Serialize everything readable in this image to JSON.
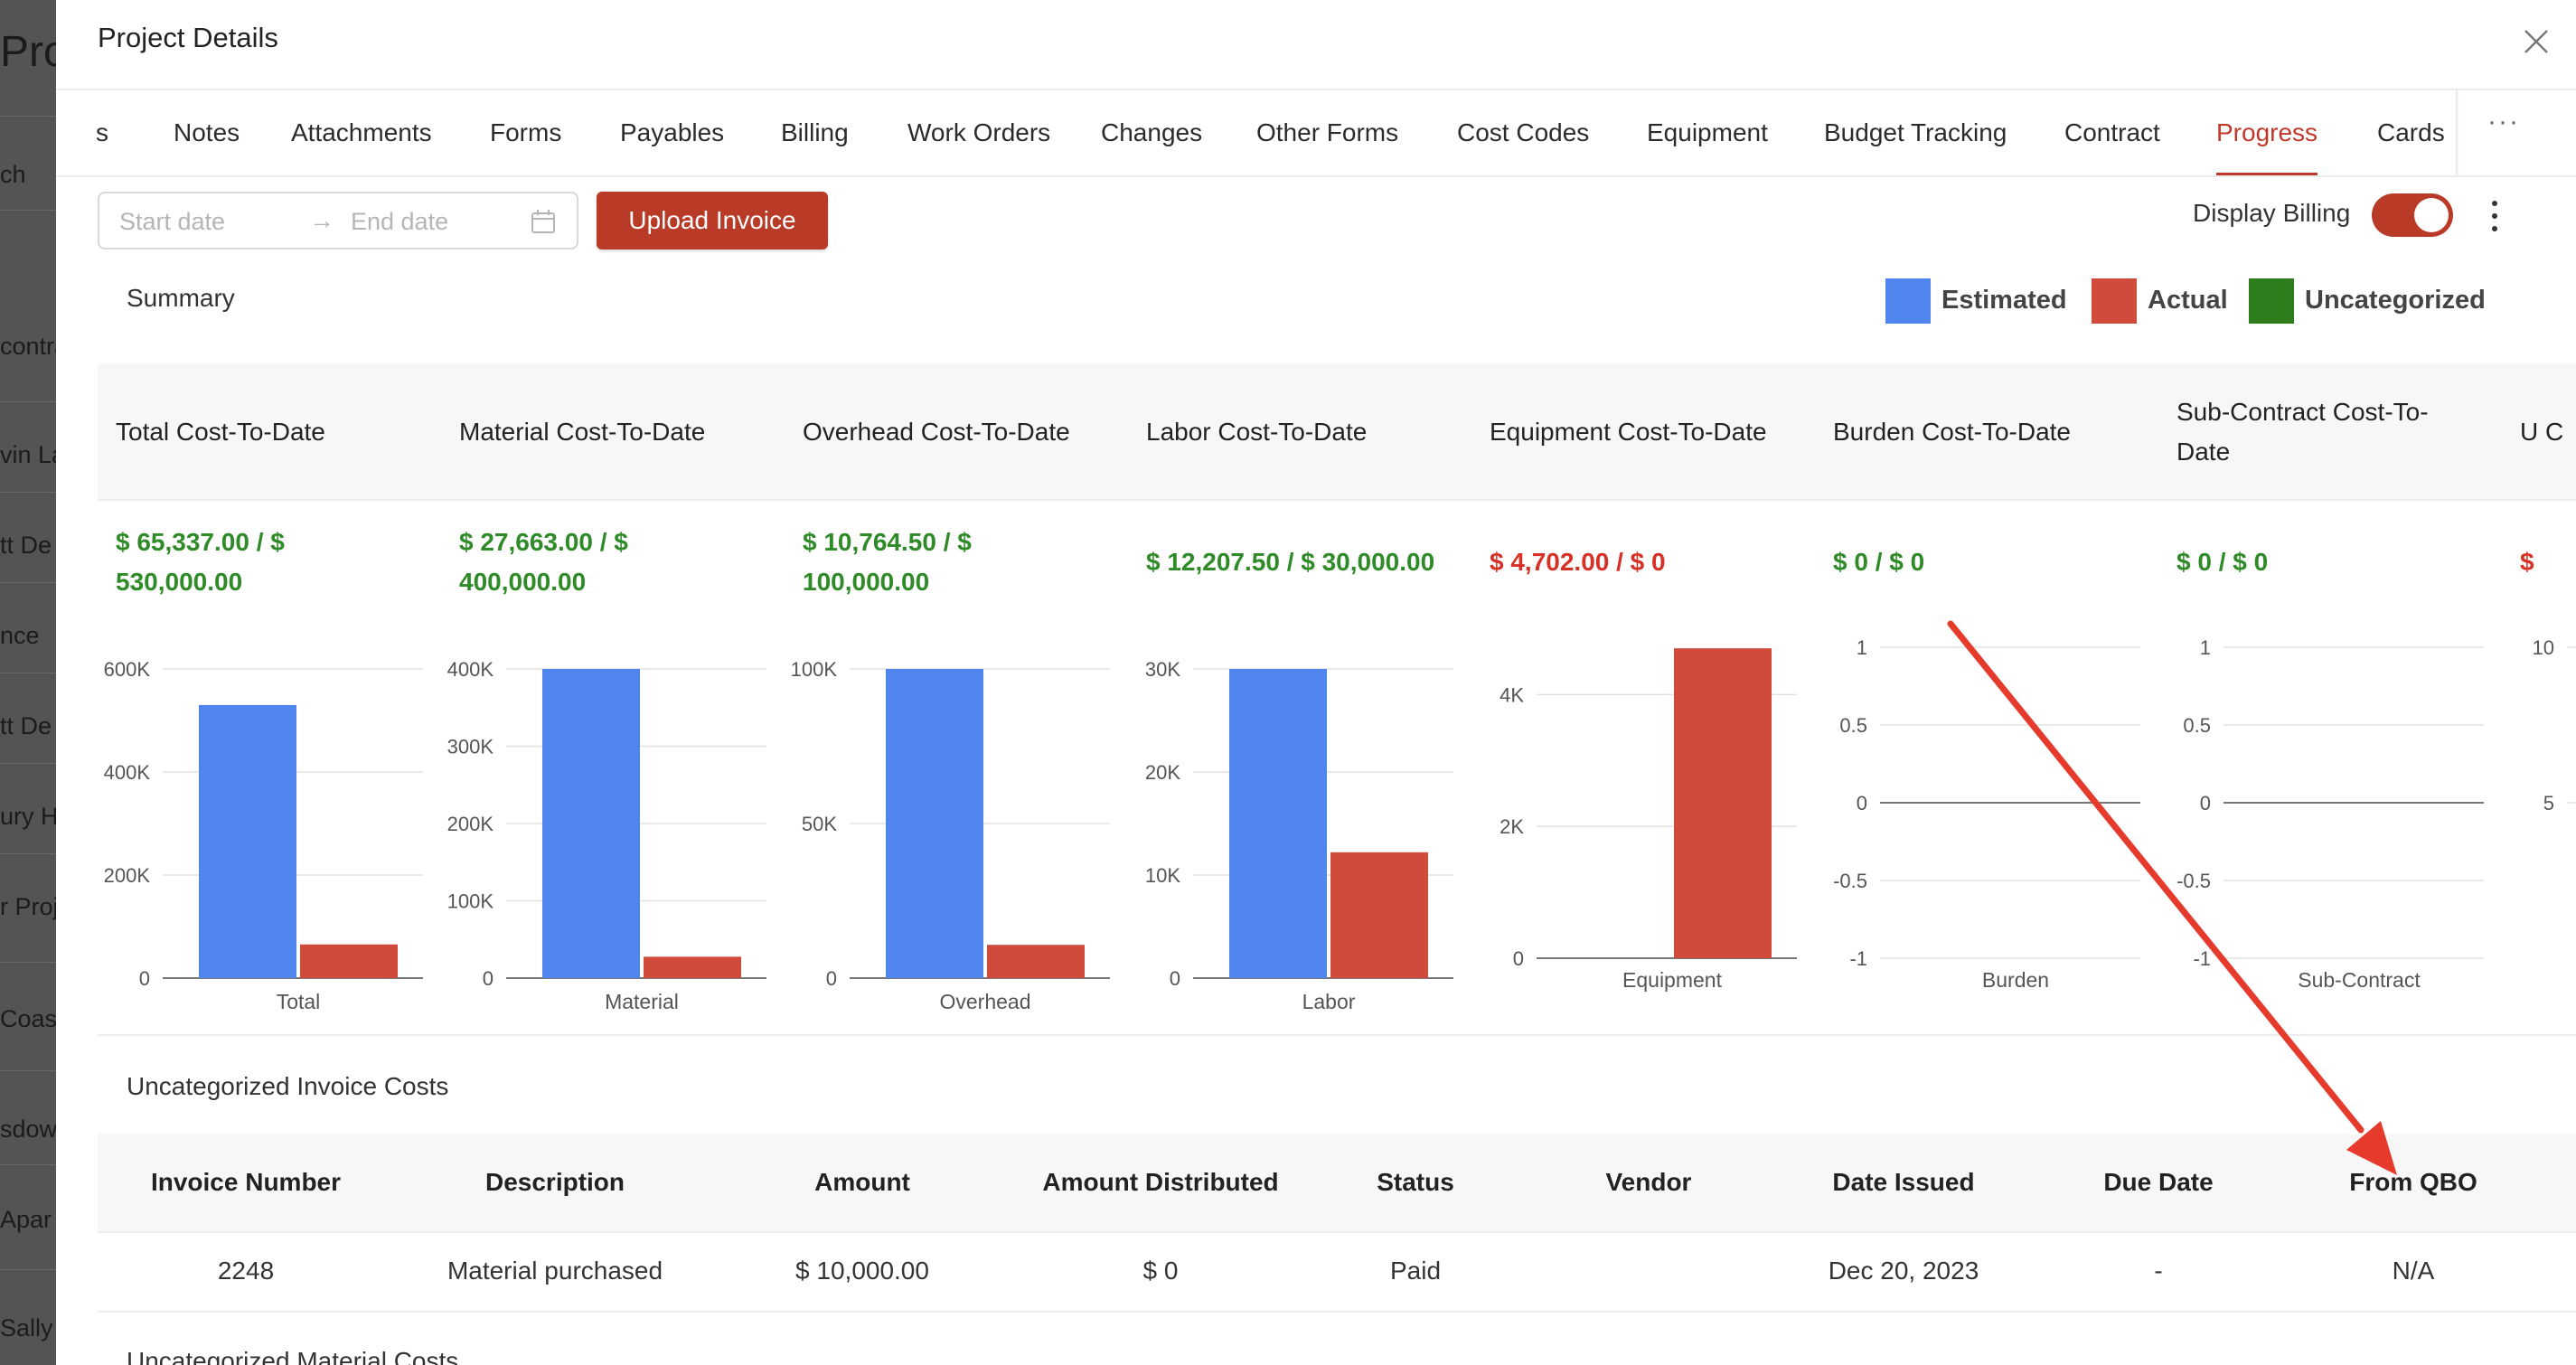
{
  "background_app": {
    "title": "Proj",
    "items": [
      "ch",
      "",
      "contra",
      "vin La",
      "tt De",
      "nce",
      "tt De",
      "ury H",
      "r Proj",
      "Coas",
      "sdow",
      "Apar",
      "Sally"
    ]
  },
  "modal": {
    "title": "Project Details"
  },
  "tabs": [
    {
      "label": "s"
    },
    {
      "label": "Notes"
    },
    {
      "label": "Attachments"
    },
    {
      "label": "Forms"
    },
    {
      "label": "Payables"
    },
    {
      "label": "Billing"
    },
    {
      "label": "Work Orders"
    },
    {
      "label": "Changes"
    },
    {
      "label": "Other Forms"
    },
    {
      "label": "Cost Codes"
    },
    {
      "label": "Equipment"
    },
    {
      "label": "Budget Tracking"
    },
    {
      "label": "Contract"
    },
    {
      "label": "Progress"
    },
    {
      "label": "Cards"
    }
  ],
  "active_tab": "Progress",
  "more_tabs_label": "···",
  "toolbar": {
    "start_placeholder": "Start date",
    "end_placeholder": "End date",
    "range_arrow": "→",
    "upload_label": "Upload Invoice",
    "display_billing_label": "Display Billing",
    "display_billing_on": true
  },
  "summary_label": "Summary",
  "legend": [
    {
      "label": "Estimated",
      "color": "#5085ee"
    },
    {
      "label": "Actual",
      "color": "#d04b3c"
    },
    {
      "label": "Uncategorized",
      "color": "#2e7d1c"
    }
  ],
  "colors": {
    "estimated": "#5085ee",
    "actual": "#d04b3c",
    "green_text": "#2e8b27",
    "red_text": "#d93025",
    "accent": "#b83a27"
  },
  "cost_columns": [
    {
      "title": "Total Cost-To-Date",
      "value": "$ 65,337.00 / $ 530,000.00",
      "status": "green"
    },
    {
      "title": "Material Cost-To-Date",
      "value": "$ 27,663.00 / $ 400,000.00",
      "status": "green"
    },
    {
      "title": "Overhead Cost-To-Date",
      "value": "$ 10,764.50 / $ 100,000.00",
      "status": "green"
    },
    {
      "title": "Labor Cost-To-Date",
      "value": "$ 12,207.50 / $ 30,000.00",
      "status": "green"
    },
    {
      "title": "Equipment Cost-To-Date",
      "value": "$ 4,702.00 / $ 0",
      "status": "red"
    },
    {
      "title": "Burden Cost-To-Date",
      "value": "$ 0 / $ 0",
      "status": "green"
    },
    {
      "title": "Sub-Contract Cost-To-Date",
      "value": "$ 0 / $ 0",
      "status": "green"
    },
    {
      "title": "U C",
      "value": "$",
      "status": "red"
    }
  ],
  "chart_data": [
    {
      "type": "bar",
      "categories": [
        "Total"
      ],
      "series": [
        {
          "values": [
            530000
          ]
        },
        {
          "values": [
            65337
          ]
        }
      ],
      "ylim": [
        0,
        600000
      ],
      "yticks": [
        "0",
        "200K",
        "400K",
        "600K"
      ]
    },
    {
      "type": "bar",
      "categories": [
        "Material"
      ],
      "series": [
        {
          "values": [
            400000
          ]
        },
        {
          "values": [
            27663
          ]
        }
      ],
      "ylim": [
        0,
        400000
      ],
      "yticks": [
        "0",
        "100K",
        "200K",
        "300K",
        "400K"
      ]
    },
    {
      "type": "bar",
      "categories": [
        "Overhead"
      ],
      "series": [
        {
          "values": [
            100000
          ]
        },
        {
          "values": [
            10764.5
          ]
        }
      ],
      "ylim": [
        0,
        100000
      ],
      "yticks": [
        "0",
        "50K",
        "100K"
      ]
    },
    {
      "type": "bar",
      "categories": [
        "Labor"
      ],
      "series": [
        {
          "values": [
            30000
          ]
        },
        {
          "values": [
            12207.5
          ]
        }
      ],
      "ylim": [
        0,
        30000
      ],
      "yticks": [
        "0",
        "10K",
        "20K",
        "30K"
      ]
    },
    {
      "type": "bar",
      "categories": [
        "Equipment"
      ],
      "series": [
        {
          "values": [
            0
          ]
        },
        {
          "values": [
            4702
          ]
        }
      ],
      "ylim": [
        0,
        4800
      ],
      "yticks": [
        "0",
        "2K",
        "4K"
      ]
    },
    {
      "type": "bar",
      "categories": [
        "Burden"
      ],
      "series": [
        {
          "values": [
            0
          ]
        },
        {
          "values": [
            0
          ]
        }
      ],
      "ylim": [
        -1,
        1
      ],
      "yticks": [
        "-1",
        "-0.5",
        "0",
        "0.5",
        "1"
      ]
    },
    {
      "type": "bar",
      "categories": [
        "Sub-Contract"
      ],
      "series": [
        {
          "values": [
            0
          ]
        },
        {
          "values": [
            0
          ]
        }
      ],
      "ylim": [
        -1,
        1
      ],
      "yticks": [
        "-1",
        "-0.5",
        "0",
        "0.5",
        "1"
      ]
    },
    {
      "type": "bar",
      "categories": [
        ""
      ],
      "series": [
        {
          "values": [
            0
          ]
        },
        {
          "values": [
            0
          ]
        }
      ],
      "ylim": [
        0,
        10
      ],
      "yticks": [
        "5",
        "10"
      ]
    }
  ],
  "uncategorized_invoice_label": "Uncategorized Invoice Costs",
  "uncategorized_material_label": "Uncategorized Material Costs",
  "invoice_table": {
    "headers": [
      "Invoice Number",
      "Description",
      "Amount",
      "Amount Distributed",
      "Status",
      "Vendor",
      "Date Issued",
      "Due Date",
      "From QBO"
    ],
    "rows": [
      [
        "2248",
        "Material purchased",
        "$ 10,000.00",
        "$ 0",
        "Paid",
        "",
        "Dec 20, 2023",
        "-",
        "N/A"
      ]
    ]
  }
}
